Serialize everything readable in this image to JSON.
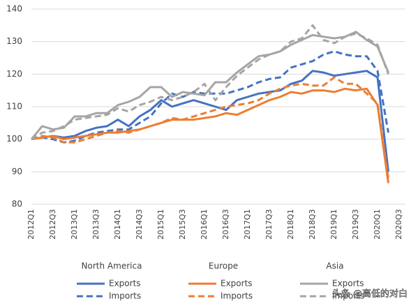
{
  "chart_data": {
    "type": "line",
    "categories": [
      "2012Q1",
      null,
      "2012Q3",
      null,
      "2013Q1",
      null,
      "2013Q3",
      null,
      "2014Q1",
      null,
      "2014Q3",
      null,
      "2015Q1",
      null,
      "2015Q3",
      null,
      "2016Q1",
      null,
      "2016Q3",
      null,
      "2017Q1",
      null,
      "2017Q3",
      null,
      "2018Q1",
      null,
      "2018Q3",
      null,
      "2019Q1",
      null,
      "2019Q3",
      null,
      "2020Q1",
      null,
      "2020Q3"
    ],
    "legend_groups": [
      "North America",
      "Europe",
      "Asia"
    ],
    "series": [
      {
        "name": "Exports",
        "color": "#4472c4",
        "style": "solid",
        "values": [
          100,
          100.5,
          101,
          100.5,
          101,
          102.5,
          103.5,
          104,
          106,
          104,
          107,
          109,
          112,
          110,
          111,
          112,
          111,
          110,
          109,
          112,
          113,
          114,
          114.5,
          115,
          117,
          118,
          121,
          120.5,
          119.5,
          120,
          120.5,
          121,
          119,
          90,
          null
        ]
      },
      {
        "name": "Imports",
        "color": "#4472c4",
        "style": "dashed",
        "values": [
          100,
          100.5,
          100,
          99,
          99.5,
          101,
          102,
          102.5,
          103,
          103,
          105,
          107,
          111,
          114,
          113,
          114.5,
          114,
          114,
          114,
          115,
          116,
          117.5,
          118.5,
          119,
          122,
          123,
          124,
          126,
          127,
          126,
          125.5,
          125.5,
          121,
          102,
          null
        ]
      },
      {
        "name": "Exports",
        "color": "#ed7d31",
        "style": "solid",
        "values": [
          100,
          100.5,
          101,
          100,
          100.5,
          101,
          101.5,
          102,
          102,
          102.5,
          103,
          104,
          105,
          106,
          106,
          106,
          106.5,
          107,
          108,
          107.5,
          109,
          110.5,
          112,
          113,
          114.5,
          114,
          115,
          115,
          114.5,
          115.5,
          115,
          115.5,
          110.5,
          86.5,
          null
        ]
      },
      {
        "name": "Imports",
        "color": "#ed7d31",
        "style": "dashed",
        "values": [
          100,
          101,
          100.5,
          99,
          99,
          100,
          101,
          102,
          102.5,
          102,
          103,
          104,
          105,
          106.5,
          106,
          107,
          108,
          109,
          110,
          110.5,
          111,
          112,
          114,
          115.5,
          116.5,
          117,
          116.5,
          116.5,
          119,
          117,
          117,
          114,
          111,
          88,
          null
        ]
      },
      {
        "name": "Exports",
        "color": "#a5a5a5",
        "style": "solid",
        "values": [
          100,
          104,
          103,
          103.5,
          107,
          107,
          108,
          108,
          110.5,
          111.5,
          113,
          116,
          116,
          113,
          114.5,
          114,
          113.5,
          117.5,
          117.5,
          120.5,
          123,
          125.5,
          126,
          127,
          129,
          130.5,
          132,
          131.5,
          131,
          131.5,
          133,
          130.5,
          128.5,
          120.5,
          null
        ]
      },
      {
        "name": "Imports",
        "color": "#a5a5a5",
        "style": "dashed",
        "values": [
          100,
          102,
          102.5,
          104,
          106,
          106.5,
          107,
          107.5,
          109.5,
          108.5,
          110.5,
          111.5,
          113,
          112,
          113,
          114.5,
          117,
          112,
          116,
          119.5,
          122,
          124.5,
          126,
          127,
          130,
          131,
          135,
          130.5,
          129.5,
          131.5,
          132.5,
          131,
          129,
          120,
          null
        ]
      }
    ],
    "ylim": [
      80,
      140
    ],
    "yticks": [
      80,
      90,
      100,
      110,
      120,
      130,
      140
    ],
    "grid": true,
    "watermark": "头条 @高低的对白"
  }
}
